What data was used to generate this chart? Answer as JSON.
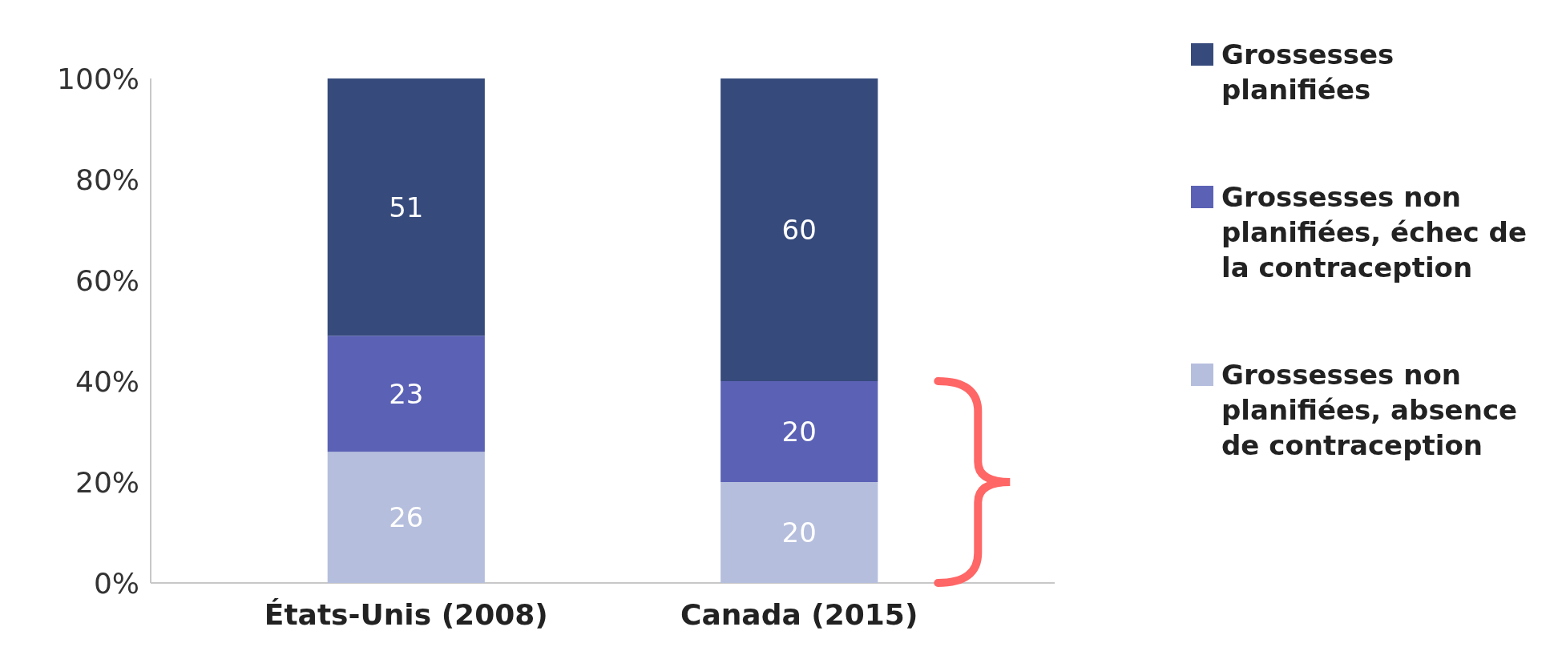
{
  "chart_data": {
    "type": "bar",
    "stacked": true,
    "categories": [
      "États-Unis (2008)",
      "Canada (2015)"
    ],
    "series": [
      {
        "name": "Grossesses non planifiées, absence de contraception",
        "color": "#b5bedd",
        "values": [
          26,
          20
        ]
      },
      {
        "name": "Grossesses non planifiées, échec de la contraception",
        "color": "#5b62b5",
        "values": [
          23,
          20
        ]
      },
      {
        "name": "Grossesses planifiées",
        "color": "#364a7c",
        "values": [
          51,
          60
        ]
      }
    ],
    "ylim": [
      0,
      100
    ],
    "yticks": [
      {
        "value": 0,
        "label": "0%"
      },
      {
        "value": 20,
        "label": "20%"
      },
      {
        "value": 40,
        "label": "40%"
      },
      {
        "value": 60,
        "label": "60%"
      },
      {
        "value": 80,
        "label": "80%"
      },
      {
        "value": 100,
        "label": "100%"
      }
    ],
    "data_labels": true,
    "legend": "right"
  }
}
